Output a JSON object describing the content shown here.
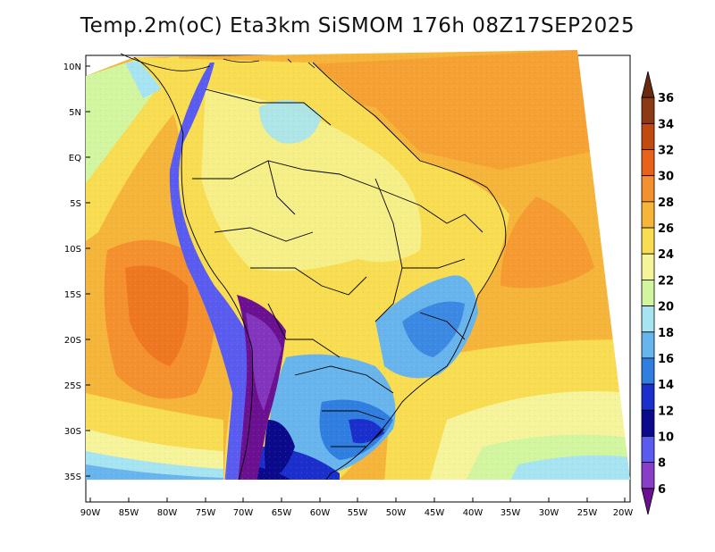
{
  "title": "Temp.2m(oC) Eta3km SiSMOM 176h 08Z17SEP2025",
  "map": {
    "lat_labels": [
      "10N",
      "5N",
      "EQ",
      "5S",
      "10S",
      "15S",
      "20S",
      "25S",
      "30S",
      "35S"
    ],
    "lon_labels": [
      "90W",
      "85W",
      "80W",
      "75W",
      "70W",
      "65W",
      "60W",
      "55W",
      "50W",
      "45W",
      "40W",
      "35W",
      "30W",
      "25W",
      "20W"
    ]
  },
  "colorbar": {
    "labels": [
      "36",
      "34",
      "32",
      "30",
      "28",
      "26",
      "24",
      "22",
      "20",
      "18",
      "16",
      "14",
      "12",
      "10",
      "8",
      "6"
    ],
    "colors": [
      "#6a2a12",
      "#8b3a14",
      "#c04a10",
      "#e8621a",
      "#f5902e",
      "#f5b53a",
      "#f8dc52",
      "#f6f49a",
      "#d2f5a0",
      "#a6e4f2",
      "#68b4ec",
      "#2f7ee0",
      "#1a2fcb",
      "#0c0a8c",
      "#5a5cf0",
      "#8a3ec8",
      "#6a1090"
    ]
  }
}
